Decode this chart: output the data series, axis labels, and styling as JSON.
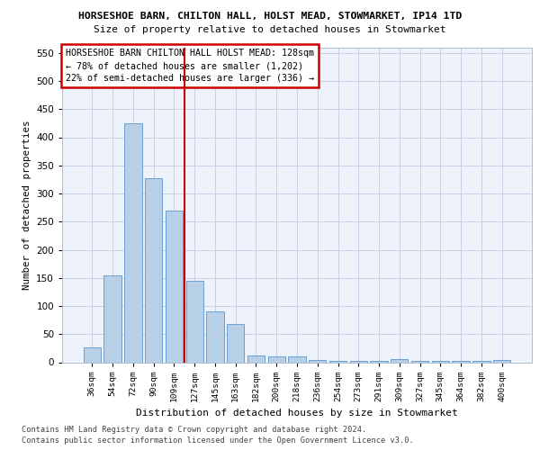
{
  "title1": "HORSESHOE BARN, CHILTON HALL, HOLST MEAD, STOWMARKET, IP14 1TD",
  "title2": "Size of property relative to detached houses in Stowmarket",
  "xlabel": "Distribution of detached houses by size in Stowmarket",
  "ylabel": "Number of detached properties",
  "categories": [
    "36sqm",
    "54sqm",
    "72sqm",
    "90sqm",
    "109sqm",
    "127sqm",
    "145sqm",
    "163sqm",
    "182sqm",
    "200sqm",
    "218sqm",
    "236sqm",
    "254sqm",
    "273sqm",
    "291sqm",
    "309sqm",
    "327sqm",
    "345sqm",
    "364sqm",
    "382sqm",
    "400sqm"
  ],
  "values": [
    27,
    155,
    425,
    327,
    270,
    145,
    90,
    68,
    12,
    10,
    10,
    4,
    3,
    3,
    3,
    5,
    3,
    3,
    3,
    3,
    4
  ],
  "bar_color": "#b8cfe8",
  "bar_edge_color": "#6a9fd0",
  "vline_color": "#cc0000",
  "annotation_text_line1": "HORSESHOE BARN CHILTON HALL HOLST MEAD: 128sqm",
  "annotation_text_line2": "← 78% of detached houses are smaller (1,202)",
  "annotation_text_line3": "22% of semi-detached houses are larger (336) →",
  "annotation_box_edge_color": "#cc0000",
  "ylim": [
    0,
    560
  ],
  "yticks": [
    0,
    50,
    100,
    150,
    200,
    250,
    300,
    350,
    400,
    450,
    500,
    550
  ],
  "footer1": "Contains HM Land Registry data © Crown copyright and database right 2024.",
  "footer2": "Contains public sector information licensed under the Open Government Licence v3.0.",
  "bg_color": "#eef2fb",
  "grid_color": "#c8d0e8",
  "fig_width": 6.0,
  "fig_height": 5.0,
  "dpi": 100
}
